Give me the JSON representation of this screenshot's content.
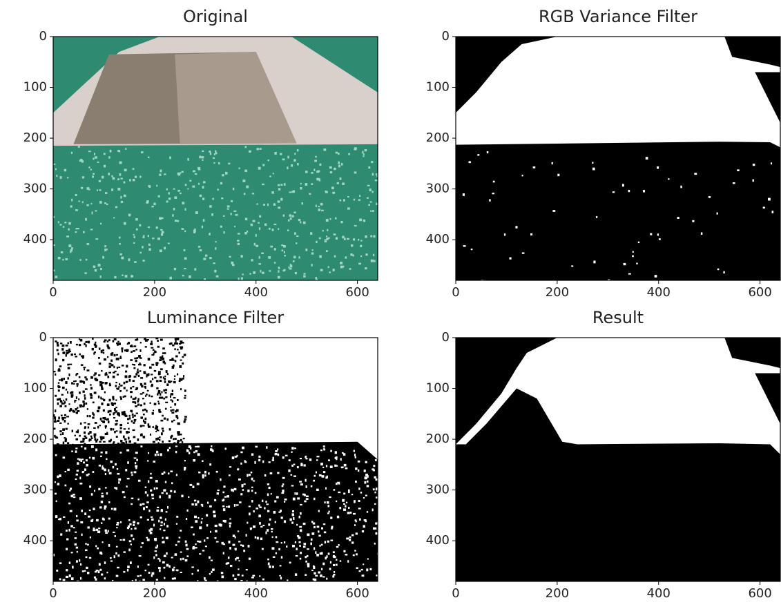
{
  "chart_data": [
    {
      "type": "image",
      "title": "Original",
      "xlim": [
        0,
        640
      ],
      "ylim": [
        480,
        0
      ],
      "xticks": [
        0,
        200,
        400,
        600
      ],
      "yticks": [
        0,
        100,
        200,
        300,
        400
      ]
    },
    {
      "type": "image",
      "title": "RGB Variance Filter",
      "xlim": [
        0,
        640
      ],
      "ylim": [
        480,
        0
      ],
      "xticks": [
        0,
        200,
        400,
        600
      ],
      "yticks": [
        0,
        100,
        200,
        300,
        400
      ]
    },
    {
      "type": "image",
      "title": "Luminance Filter",
      "xlim": [
        0,
        640
      ],
      "ylim": [
        480,
        0
      ],
      "xticks": [
        0,
        200,
        400,
        600
      ],
      "yticks": [
        0,
        100,
        200,
        300,
        400
      ]
    },
    {
      "type": "image",
      "title": "Result",
      "xlim": [
        0,
        640
      ],
      "ylim": [
        480,
        0
      ],
      "xticks": [
        0,
        200,
        400,
        600
      ],
      "yticks": [
        0,
        100,
        200,
        300,
        400
      ]
    }
  ]
}
